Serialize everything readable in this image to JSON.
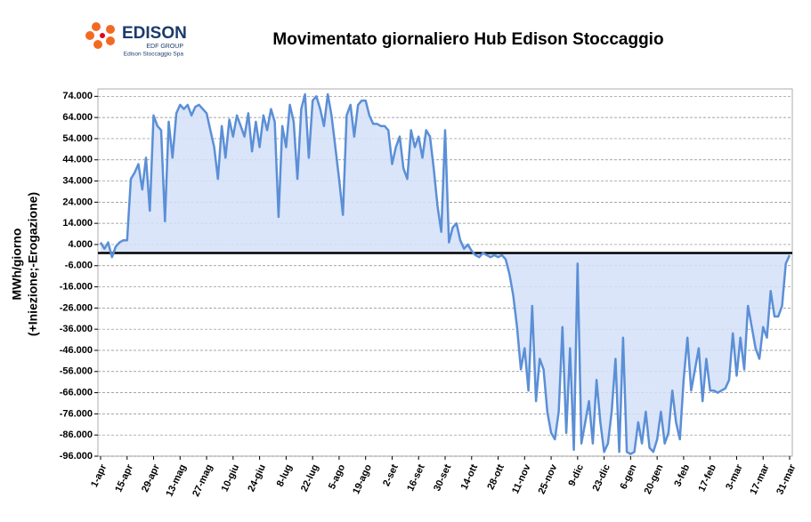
{
  "header": {
    "logo": "EDISON",
    "group": "EDF GROUP",
    "company": "Edison Stoccaggio Spa"
  },
  "chart_data": {
    "type": "line",
    "title": "Movimentato giornaliero Hub Edison Stoccaggio",
    "y_label": [
      "MWh/giorno",
      "(+Iniezione;-Erogazione)"
    ],
    "color": "#5b8fd6",
    "fill": "#d3e1f9",
    "grid": true,
    "ylim": [
      -96000,
      77500
    ],
    "yticks": [
      {
        "value": 74000,
        "label": "74.000"
      },
      {
        "value": 64000,
        "label": "64.000"
      },
      {
        "value": 54000,
        "label": "54.000"
      },
      {
        "value": 44000,
        "label": "44.000"
      },
      {
        "value": 34000,
        "label": "34.000"
      },
      {
        "value": 24000,
        "label": "24.000"
      },
      {
        "value": 14000,
        "label": "14.000"
      },
      {
        "value": 4000,
        "label": "4.000"
      },
      {
        "value": -6000,
        "label": "-6.000"
      },
      {
        "value": -16000,
        "label": "-16.000"
      },
      {
        "value": -26000,
        "label": "-26.000"
      },
      {
        "value": -36000,
        "label": "-36.000"
      },
      {
        "value": -46000,
        "label": "-46.000"
      },
      {
        "value": -56000,
        "label": "-56.000"
      },
      {
        "value": -66000,
        "label": "-66.000"
      },
      {
        "value": -76000,
        "label": "-76.000"
      },
      {
        "value": -86000,
        "label": "-86.000"
      },
      {
        "value": -96000,
        "label": "-96.000"
      }
    ],
    "categories": [
      "1-apr",
      null,
      null,
      null,
      null,
      null,
      null,
      "15-apr",
      null,
      null,
      null,
      null,
      null,
      null,
      "29-apr",
      null,
      null,
      null,
      null,
      null,
      null,
      "13-mag",
      null,
      null,
      null,
      null,
      null,
      null,
      "27-mag",
      null,
      null,
      null,
      null,
      null,
      null,
      "10-giu",
      null,
      null,
      null,
      null,
      null,
      null,
      "24-giu",
      null,
      null,
      null,
      null,
      null,
      null,
      "8-lug",
      null,
      null,
      null,
      null,
      null,
      null,
      "22-lug",
      null,
      null,
      null,
      null,
      null,
      null,
      "5-ago",
      null,
      null,
      null,
      null,
      null,
      null,
      "19-ago",
      null,
      null,
      null,
      null,
      null,
      null,
      "2-set",
      null,
      null,
      null,
      null,
      null,
      null,
      "16-set",
      null,
      null,
      null,
      null,
      null,
      null,
      "30-set",
      null,
      null,
      null,
      null,
      null,
      null,
      "14-ott",
      null,
      null,
      null,
      null,
      null,
      null,
      "28-ott",
      null,
      null,
      null,
      null,
      null,
      null,
      "11-nov",
      null,
      null,
      null,
      null,
      null,
      null,
      "25-nov",
      null,
      null,
      null,
      null,
      null,
      null,
      "9-dic",
      null,
      null,
      null,
      null,
      null,
      null,
      "23-dic",
      null,
      null,
      null,
      null,
      null,
      null,
      "6-gen",
      null,
      null,
      null,
      null,
      null,
      null,
      "20-gen",
      null,
      null,
      null,
      null,
      null,
      null,
      "3-feb",
      null,
      null,
      null,
      null,
      null,
      null,
      "17-feb",
      null,
      null,
      null,
      null,
      null,
      null,
      "3-mar",
      null,
      null,
      null,
      null,
      null,
      null,
      "17-mar",
      null,
      null,
      null,
      null,
      null,
      null,
      "31-mar"
    ],
    "values": [
      5000,
      2000,
      5000,
      -2000,
      3000,
      5000,
      6000,
      6000,
      35000,
      38000,
      42000,
      30000,
      45000,
      20000,
      65000,
      60000,
      58000,
      15000,
      62000,
      45000,
      66000,
      70000,
      68000,
      70000,
      65000,
      69000,
      70000,
      68000,
      66000,
      58000,
      50000,
      35000,
      60000,
      45000,
      63000,
      55000,
      65000,
      60000,
      55000,
      66000,
      48000,
      62000,
      50000,
      65000,
      58000,
      68000,
      62000,
      17000,
      60000,
      50000,
      70000,
      62000,
      35000,
      68000,
      75000,
      45000,
      72000,
      74000,
      68000,
      60000,
      75000,
      65000,
      50000,
      35000,
      18000,
      65000,
      70000,
      55000,
      70000,
      72000,
      72000,
      65000,
      61000,
      61000,
      60000,
      60000,
      58000,
      42000,
      50000,
      55000,
      40000,
      35000,
      58000,
      50000,
      55000,
      45000,
      58000,
      55000,
      40000,
      22000,
      10000,
      58000,
      5000,
      12000,
      14000,
      6000,
      2000,
      4000,
      1000,
      -1000,
      -2000,
      0,
      -1000,
      -2000,
      -1000,
      -2000,
      -1000,
      -3000,
      -10000,
      -20000,
      -35000,
      -55000,
      -45000,
      -65000,
      -25000,
      -70000,
      -50000,
      -55000,
      -75000,
      -85000,
      -88000,
      -75000,
      -35000,
      -85000,
      -45000,
      -93000,
      -5000,
      -90000,
      -80000,
      -70000,
      -90000,
      -60000,
      -80000,
      -94000,
      -90000,
      -75000,
      -50000,
      -94000,
      -40000,
      -94000,
      -95000,
      -94000,
      -80000,
      -90000,
      -75000,
      -92000,
      -94000,
      -88000,
      -75000,
      -90000,
      -85000,
      -65000,
      -80000,
      -88000,
      -60000,
      -40000,
      -65000,
      -55000,
      -45000,
      -70000,
      -50000,
      -65000,
      -65000,
      -66000,
      -65000,
      -64000,
      -60000,
      -38000,
      -58000,
      -40000,
      -55000,
      -25000,
      -35000,
      -45000,
      -50000,
      -35000,
      -40000,
      -18000,
      -30000,
      -30000,
      -25000,
      -5000,
      -1000
    ]
  }
}
